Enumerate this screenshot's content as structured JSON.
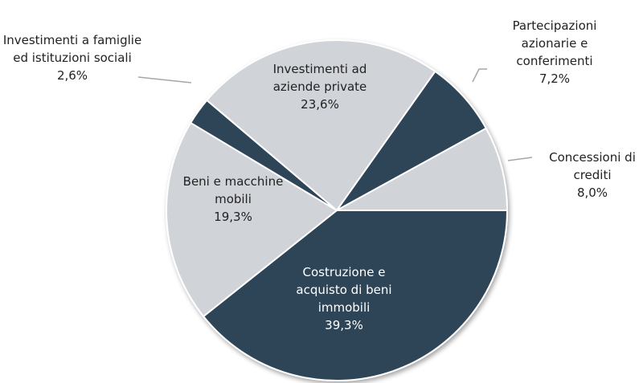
{
  "chart_data": {
    "type": "pie",
    "categories": [
      "Costruzione e acquisto di beni immobili",
      "Beni e macchine mobili",
      "Investimenti a famiglie ed istituzioni sociali",
      "Investimenti ad aziende private",
      "Partecipazioni azionarie e conferimenti",
      "Concessioni di crediti"
    ],
    "values": [
      39.3,
      19.3,
      2.6,
      23.6,
      7.2,
      8.0
    ],
    "value_labels": [
      "39,3%",
      "19,3%",
      "2,6%",
      "23,6%",
      "7,2%",
      "8,0%"
    ],
    "colors": [
      "#2e4559",
      "#d0d3d8",
      "#2e4559",
      "#d0d3d8",
      "#2e4559",
      "#d0d3d8"
    ]
  }
}
